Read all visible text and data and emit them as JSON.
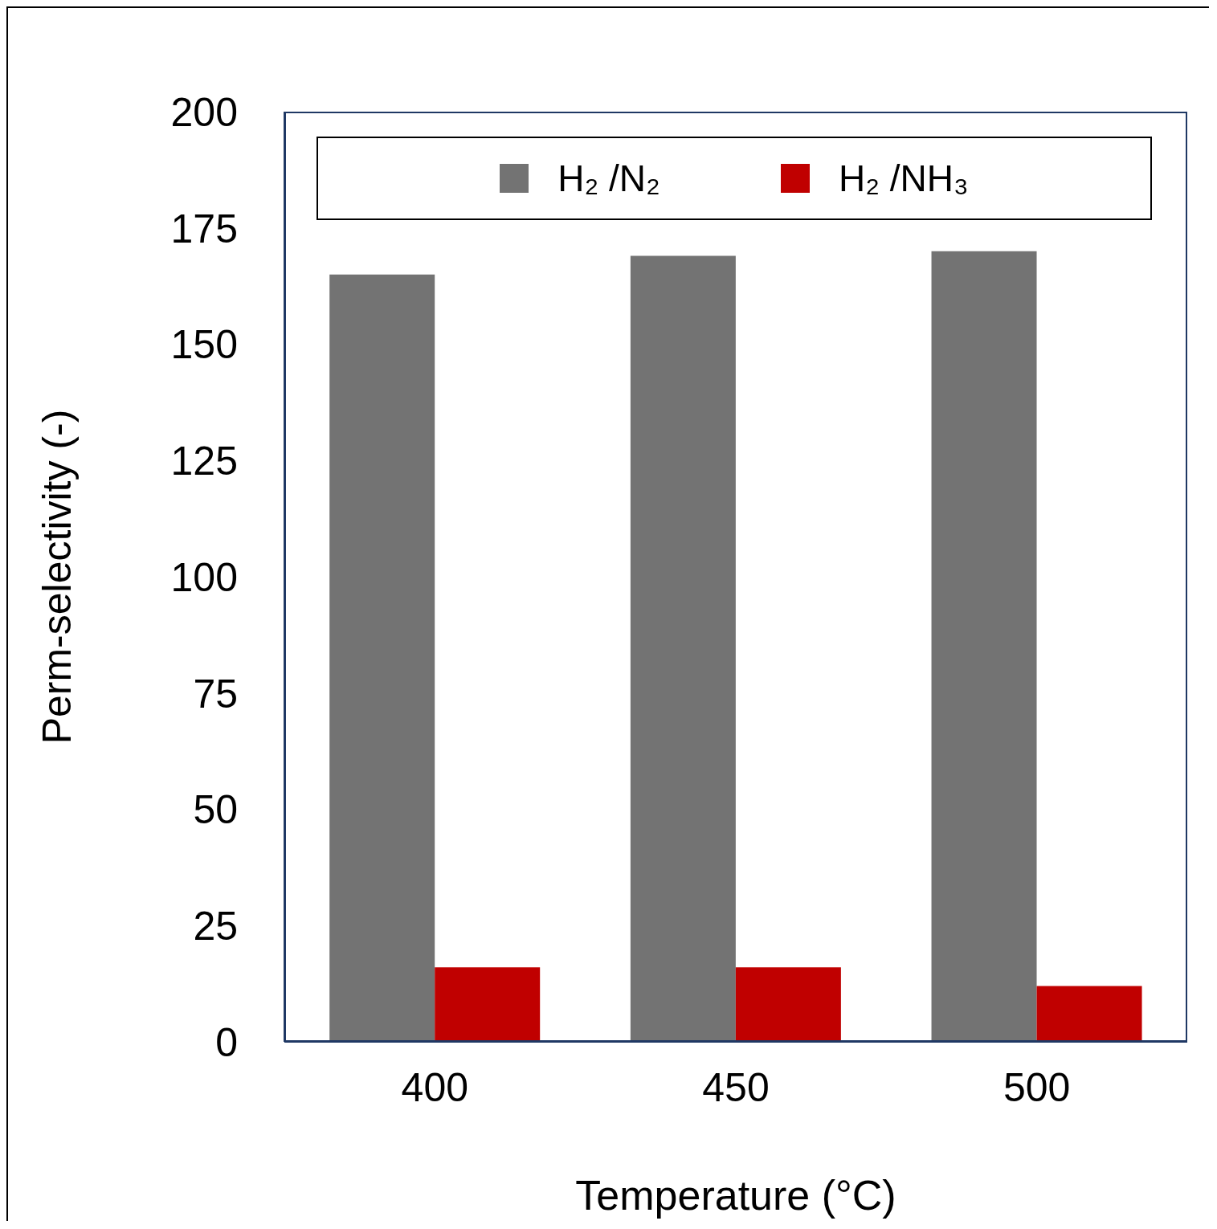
{
  "chart_data": {
    "type": "bar",
    "xlabel": "Temperature (°C)",
    "ylabel": "Perm-selectivity (-)",
    "categories": [
      "400",
      "450",
      "500"
    ],
    "series": [
      {
        "name": "H₂ /N₂",
        "color": "#737373",
        "values": [
          165,
          169,
          170
        ]
      },
      {
        "name": "H₂ /NH₃",
        "color": "#c00000",
        "values": [
          16,
          16,
          12
        ]
      }
    ],
    "ylim": [
      0,
      200
    ],
    "yticks": [
      0,
      25,
      50,
      75,
      100,
      125,
      150,
      175,
      200
    ],
    "grid": false,
    "legend": "top"
  }
}
